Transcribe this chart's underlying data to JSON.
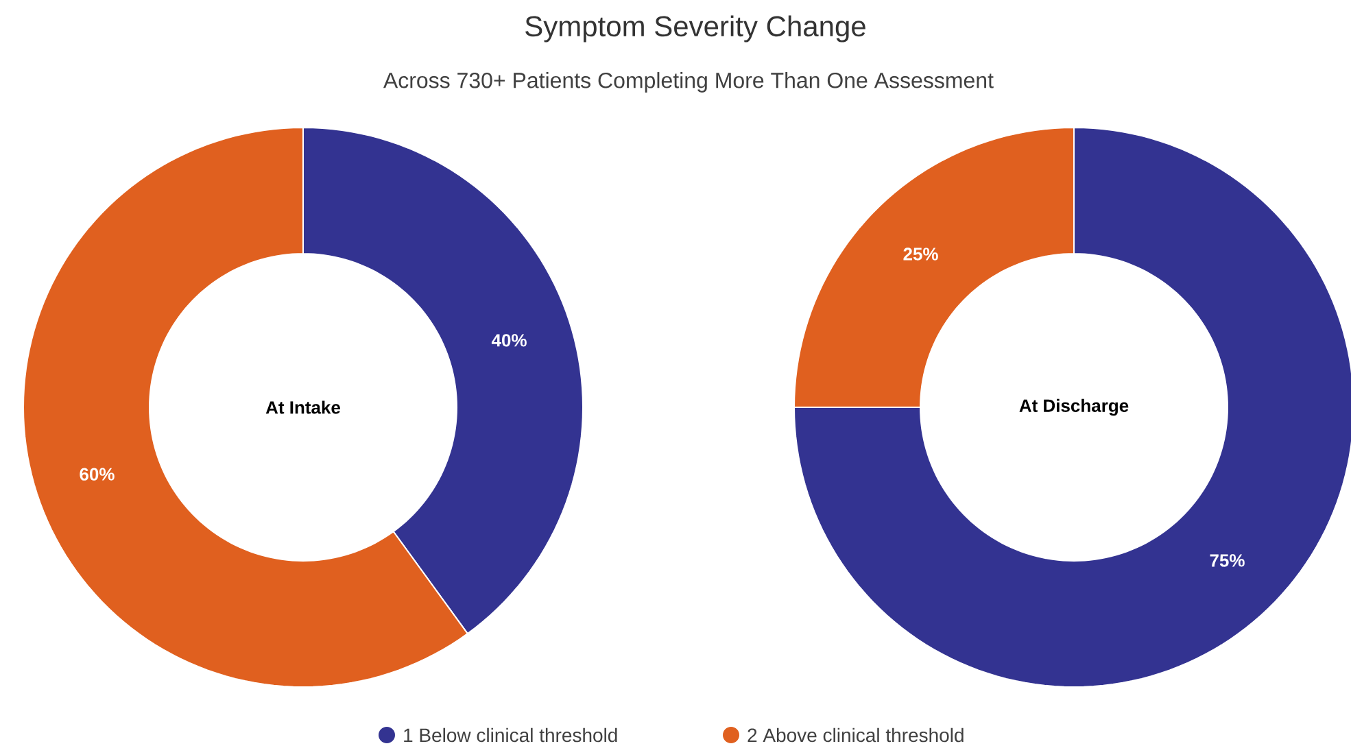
{
  "chart_data": [
    {
      "type": "donut",
      "title": "Symptom Severity Change",
      "subtitle": "Across 730+ Patients Completing More Than One Assessment",
      "categories": [
        "1 Below clinical threshold",
        "2 Above clinical threshold"
      ],
      "values": [
        40,
        60
      ],
      "value_labels": [
        "40%",
        "60%"
      ],
      "colors": [
        "#333391",
        "#e0601f"
      ],
      "annotations": [
        "At Intake"
      ],
      "legend": "bottom"
    },
    {
      "type": "donut",
      "values": [
        75,
        25
      ],
      "value_labels": [
        "75%",
        "25%"
      ],
      "colors": [
        "#333391",
        "#e0601f"
      ],
      "annotations": [
        "At Discharge"
      ]
    }
  ]
}
